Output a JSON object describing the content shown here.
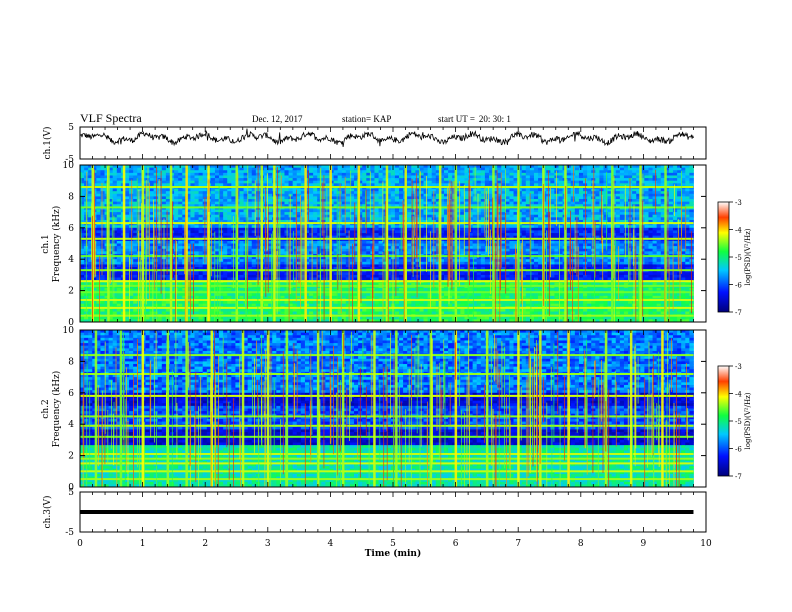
{
  "header": {
    "title": "VLF Spectra",
    "date": "Dec. 12, 2017",
    "station": "station= KAP",
    "start_label": "start  UT =",
    "start_value": "20: 30: 1"
  },
  "chart_data": [
    {
      "type": "line",
      "panel": "ch1-waveform",
      "ylabel": "ch.1(V)",
      "ylim": [
        -5,
        5
      ],
      "yticks": [
        -5,
        5
      ],
      "xlim": [
        0,
        10
      ],
      "x_end": 9.8,
      "description_values": "noisy waveform fluctuating roughly between 0 and 3 V",
      "color": "#000000"
    },
    {
      "type": "heatmap",
      "panel": "ch1-spectrogram",
      "ylabel_line1": "ch.1",
      "ylabel_line2": "Frequency (kHz)",
      "ylim": [
        0,
        10
      ],
      "yticks": [
        0,
        2,
        4,
        6,
        8,
        10
      ],
      "xlim": [
        0,
        10
      ],
      "x_end": 9.8,
      "colorbar": {
        "label": "log(PSD)(V²/Hz)",
        "range": [
          -7,
          -3
        ],
        "ticks": [
          -3,
          -4,
          -5,
          -6,
          -7
        ]
      },
      "bright_bands_khz": [
        0.4,
        0.9,
        1.4,
        1.9,
        2.3,
        2.6,
        3.3,
        4.2,
        5.3,
        6.3,
        7.3,
        8.6
      ],
      "bright_columns_min": [
        0.2,
        0.45,
        0.7,
        1.0,
        1.45,
        1.7,
        2.05,
        2.5,
        2.9,
        3.1,
        3.6,
        4.0,
        4.45,
        4.9,
        5.2,
        5.75,
        6.0,
        6.6,
        7.0,
        7.4,
        7.75,
        8.5,
        8.95,
        9.35
      ]
    },
    {
      "type": "heatmap",
      "panel": "ch2-spectrogram",
      "ylabel_line1": "ch.2",
      "ylabel_line2": "Frequency (kHz)",
      "ylim": [
        0,
        10
      ],
      "yticks": [
        0,
        2,
        4,
        6,
        8,
        10
      ],
      "xlim": [
        0,
        10
      ],
      "x_end": 9.8,
      "colorbar": {
        "label": "log(PSD)(V²/Hz)",
        "range": [
          -7,
          -3
        ],
        "ticks": [
          -3,
          -4,
          -5,
          -6,
          -7
        ]
      },
      "bright_bands_khz": [
        0.5,
        1.0,
        1.5,
        1.8,
        2.1,
        3.2,
        3.9,
        4.5,
        5.8,
        7.2,
        8.4
      ],
      "bright_columns_min": [
        0.25,
        0.65,
        1.0,
        1.4,
        1.7,
        2.1,
        2.6,
        3.0,
        3.3,
        3.8,
        4.2,
        4.7,
        5.05,
        5.6,
        6.0,
        6.5,
        7.0,
        7.35,
        7.8,
        8.4,
        8.8,
        9.3
      ]
    },
    {
      "type": "line",
      "panel": "ch3-waveform",
      "ylabel": "ch.3(V)",
      "ylim": [
        -5,
        5
      ],
      "yticks": [
        -5,
        5
      ],
      "xlim": [
        0,
        10
      ],
      "x": [
        0,
        9.8
      ],
      "y": [
        0,
        0
      ],
      "color": "#000000"
    }
  ],
  "xaxis": {
    "label": "Time (min)",
    "ticks": [
      "0",
      "1",
      "2",
      "3",
      "4",
      "5",
      "6",
      "7",
      "8",
      "9",
      "10"
    ]
  }
}
